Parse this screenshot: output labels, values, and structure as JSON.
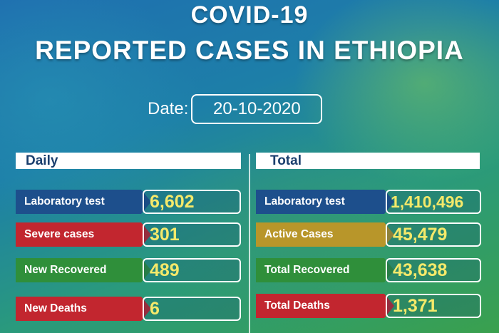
{
  "header": {
    "title_line1": "COVID-19",
    "title_line2": "REPORTED CASES IN ETHIOPIA"
  },
  "date": {
    "label": "Date:",
    "value": "20-10-2020"
  },
  "daily": {
    "heading": "Daily",
    "rows": [
      {
        "label": "Laboratory test",
        "value": "6,602",
        "color": "#1d4f8c"
      },
      {
        "label": "Severe cases",
        "value": "301",
        "color": "#c2262f"
      },
      {
        "label": "New Recovered",
        "value": "489",
        "color": "#2f8f3a"
      },
      {
        "label": "New Deaths",
        "value": "6",
        "color": "#c2262f"
      }
    ]
  },
  "total": {
    "heading": "Total",
    "rows": [
      {
        "label": "Laboratory test",
        "value": "1,410,496",
        "color": "#1d4f8c"
      },
      {
        "label": "Active Cases",
        "value": "45,479",
        "color": "#b8962a"
      },
      {
        "label": "Total Recovered",
        "value": "43,638",
        "color": "#2f8f3a"
      },
      {
        "label": "Total Deaths",
        "value": "1,371",
        "color": "#c2262f"
      }
    ]
  },
  "colors": {
    "value_text": "#f5e96a",
    "header_text": "#1b3f6e"
  }
}
